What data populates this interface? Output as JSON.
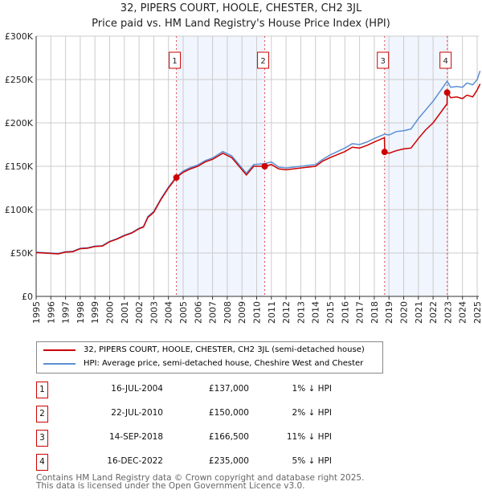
{
  "chart_data": {
    "type": "line",
    "title": "32, PIPERS COURT, HOOLE, CHESTER, CH2 3JL",
    "subtitle": "Price paid vs. HM Land Registry's House Price Index (HPI)",
    "xlim": [
      1995,
      2025.2
    ],
    "ylim": [
      0,
      300000
    ],
    "x_ticks": [
      "1995",
      "1996",
      "1997",
      "1998",
      "1999",
      "2000",
      "2001",
      "2002",
      "2003",
      "2004",
      "2005",
      "2006",
      "2007",
      "2008",
      "2009",
      "2010",
      "2011",
      "2012",
      "2013",
      "2014",
      "2015",
      "2016",
      "2017",
      "2018",
      "2019",
      "2020",
      "2021",
      "2022",
      "2023",
      "2024",
      "2025"
    ],
    "y_ticks": [
      {
        "v": 0,
        "label": "£0"
      },
      {
        "v": 50000,
        "label": "£50K"
      },
      {
        "v": 100000,
        "label": "£100K"
      },
      {
        "v": 150000,
        "label": "£150K"
      },
      {
        "v": 200000,
        "label": "£200K"
      },
      {
        "v": 250000,
        "label": "£250K"
      },
      {
        "v": 300000,
        "label": "£300K"
      }
    ],
    "grid": true,
    "series": [
      {
        "name": "32, PIPERS COURT, HOOLE, CHESTER, CH2 3JL (semi-detached house)",
        "color": "#cc0000",
        "x": [
          1995,
          1995.5,
          1996,
          1996.5,
          1997,
          1997.5,
          1998,
          1998.5,
          1999,
          1999.5,
          2000,
          2000.5,
          2001,
          2001.5,
          2002,
          2002.3,
          2002.6,
          2003,
          2003.5,
          2004,
          2004.54,
          2005,
          2005.5,
          2006,
          2006.5,
          2007,
          2007.7,
          2008.3,
          2009,
          2009.3,
          2009.8,
          2010.55,
          2011,
          2011.5,
          2012,
          2013,
          2014,
          2014.5,
          2015,
          2016,
          2016.5,
          2017,
          2017.5,
          2018,
          2018.69,
          2018.71,
          2019,
          2019.5,
          2020,
          2020.5,
          2021,
          2021.5,
          2022,
          2022.95,
          2022.96,
          2023.2,
          2023.6,
          2024,
          2024.3,
          2024.7,
          2025,
          2025.2
        ],
        "y": [
          50500,
          50000,
          49500,
          49000,
          51000,
          51500,
          55000,
          55500,
          57500,
          58000,
          63000,
          66000,
          70000,
          73000,
          78000,
          80000,
          91000,
          97000,
          112000,
          125000,
          137000,
          143000,
          147000,
          150000,
          155000,
          158000,
          165000,
          160000,
          146000,
          140000,
          150000,
          150000,
          152000,
          147000,
          146000,
          148000,
          150000,
          156000,
          160000,
          167000,
          172000,
          171000,
          174000,
          178000,
          183000,
          166500,
          165000,
          168000,
          170000,
          171000,
          182000,
          192000,
          200000,
          222000,
          235000,
          229000,
          230000,
          228000,
          232000,
          230000,
          238000,
          245000
        ]
      },
      {
        "name": "HPI: Average price, semi-detached house, Cheshire West and Chester",
        "color": "#5b8fd4",
        "x": [
          1995,
          1995.5,
          1996,
          1996.5,
          1997,
          1997.5,
          1998,
          1998.5,
          1999,
          1999.5,
          2000,
          2000.5,
          2001,
          2001.5,
          2002,
          2002.3,
          2002.6,
          2003,
          2003.5,
          2004,
          2004.54,
          2005,
          2005.5,
          2006,
          2006.5,
          2007,
          2007.7,
          2008.3,
          2009,
          2009.3,
          2009.8,
          2010.55,
          2011,
          2011.5,
          2012,
          2013,
          2014,
          2014.5,
          2015,
          2016,
          2016.5,
          2017,
          2017.5,
          2018,
          2018.7,
          2019,
          2019.5,
          2020,
          2020.5,
          2021,
          2021.5,
          2022,
          2022.96,
          2023.2,
          2023.6,
          2024,
          2024.3,
          2024.7,
          2025,
          2025.2
        ],
        "y": [
          51000,
          50500,
          50000,
          49500,
          51500,
          52000,
          55500,
          56000,
          58000,
          58500,
          63500,
          66500,
          70500,
          73500,
          78500,
          80500,
          92000,
          98000,
          113000,
          126000,
          138000,
          144500,
          148500,
          151500,
          156500,
          159500,
          167000,
          162000,
          148000,
          142000,
          152000,
          153000,
          155000,
          149000,
          148000,
          150000,
          152000,
          158000,
          163000,
          171000,
          176000,
          175000,
          178000,
          182000,
          187000,
          186000,
          190000,
          191000,
          193000,
          205000,
          215000,
          225000,
          248000,
          241000,
          242000,
          241000,
          246000,
          244000,
          250000,
          260000
        ]
      }
    ],
    "annotations": [
      {
        "label": "1",
        "x": 2004.54,
        "date": "16-JUL-2004",
        "price_value": 137000,
        "price": "£137,000",
        "hpi": "1% ↓ HPI"
      },
      {
        "label": "2",
        "x": 2010.55,
        "date": "22-JUL-2010",
        "price_value": 150000,
        "price": "£150,000",
        "hpi": "2% ↓ HPI"
      },
      {
        "label": "3",
        "x": 2018.7,
        "date": "14-SEP-2018",
        "price_value": 166500,
        "price": "£166,500",
        "hpi": "11% ↓ HPI"
      },
      {
        "label": "4",
        "x": 2022.96,
        "date": "16-DEC-2022",
        "price_value": 235000,
        "price": "£235,000",
        "hpi": "5% ↓ HPI"
      }
    ],
    "shaded_ranges": [
      [
        2004.54,
        2010.55
      ],
      [
        2018.7,
        2022.96
      ]
    ]
  },
  "footer": {
    "line1": "Contains HM Land Registry data © Crown copyright and database right 2025.",
    "line2": "This data is licensed under the Open Government Licence v3.0."
  }
}
